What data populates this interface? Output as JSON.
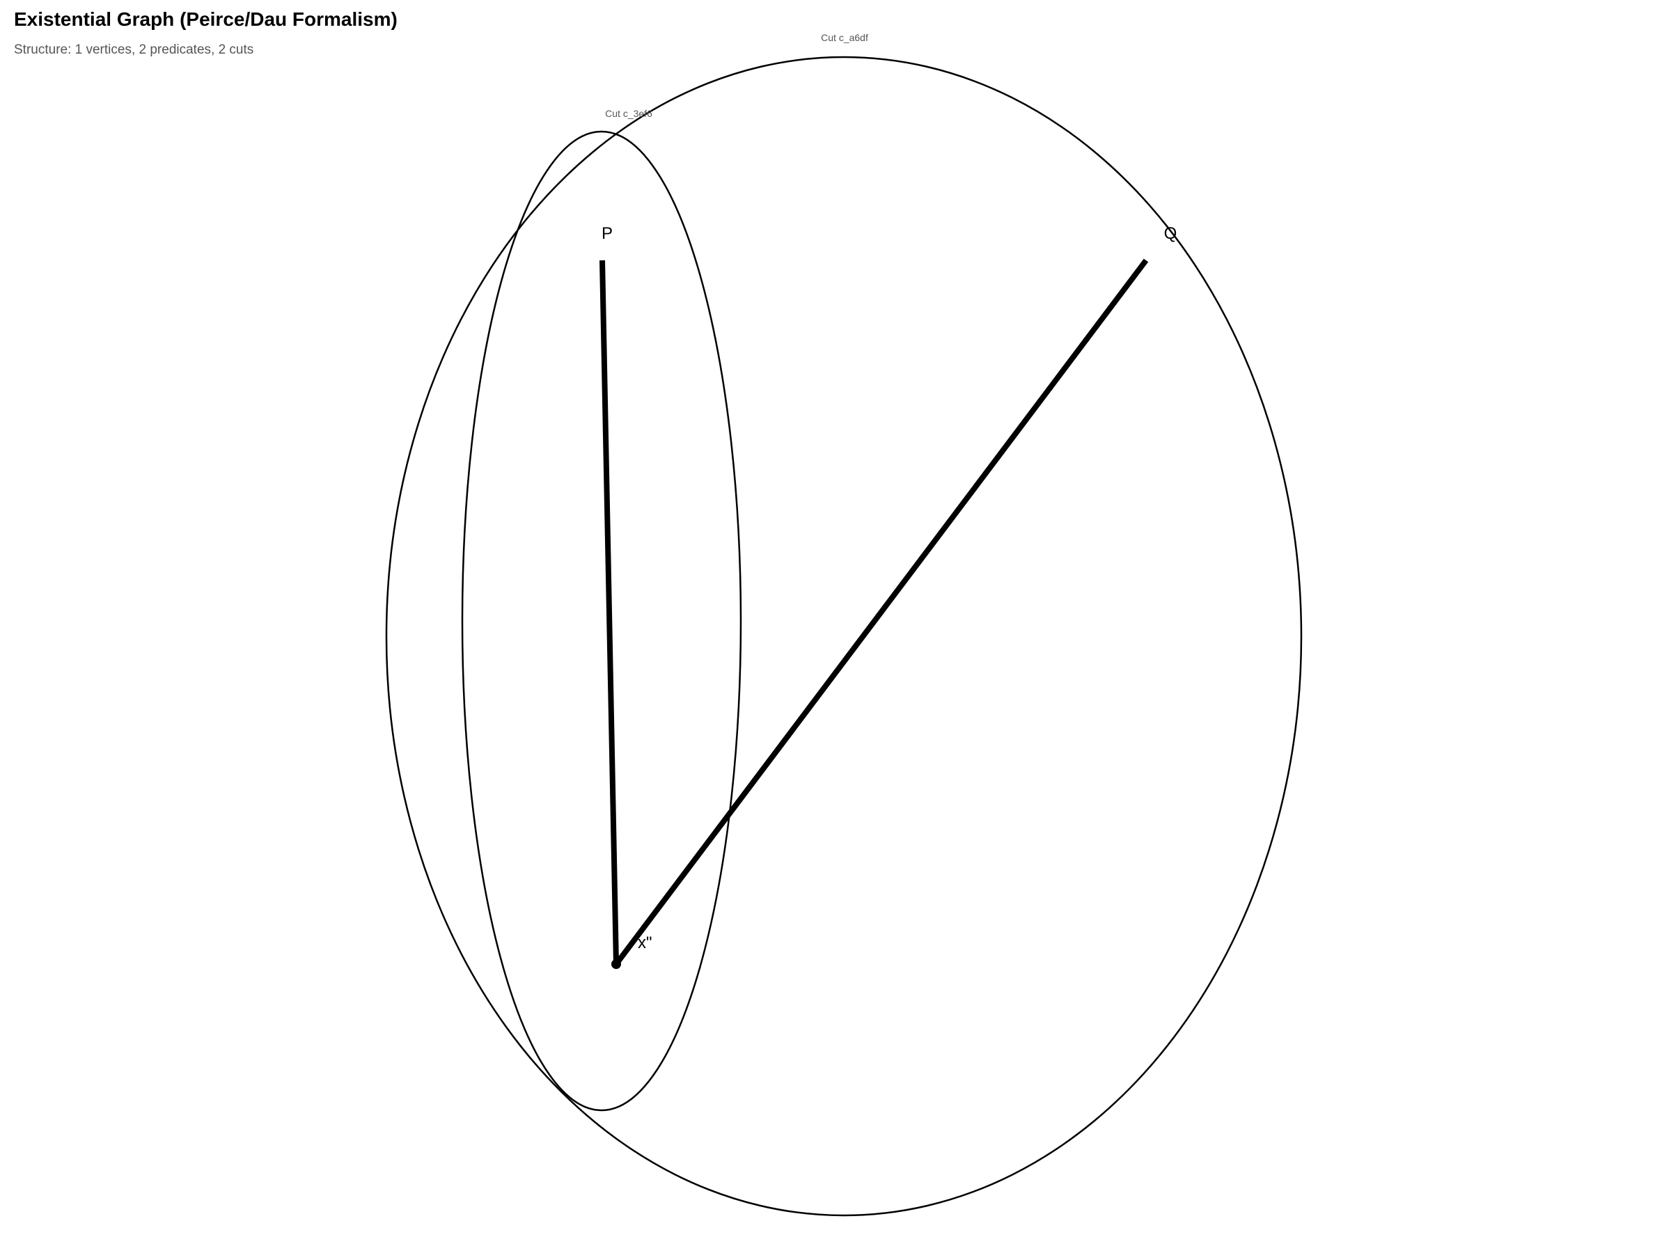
{
  "header": {
    "title": "Existential Graph (Peirce/Dau Formalism)",
    "subtitle": "Structure: 1 vertices, 2 predicates, 2 cuts"
  },
  "colors": {
    "ink": "#000000",
    "cut_stroke": "#000000",
    "cut_label": "#555555",
    "subtitle": "#555555",
    "background": "#ffffff"
  },
  "graph": {
    "cuts": [
      {
        "id": "c_a6df",
        "label": "Cut c_a6df",
        "contains": [
          "Q"
        ]
      },
      {
        "id": "c_3ef6",
        "label": "Cut c_3ef6",
        "contains": [
          "P"
        ]
      }
    ],
    "predicates": [
      {
        "name": "P",
        "label": "P"
      },
      {
        "name": "Q",
        "label": "Q"
      }
    ],
    "vertices": [
      {
        "id": "x",
        "label": "x\""
      }
    ],
    "ligatures": [
      {
        "from": "P",
        "to": "x"
      },
      {
        "from": "Q",
        "to": "x"
      }
    ]
  }
}
